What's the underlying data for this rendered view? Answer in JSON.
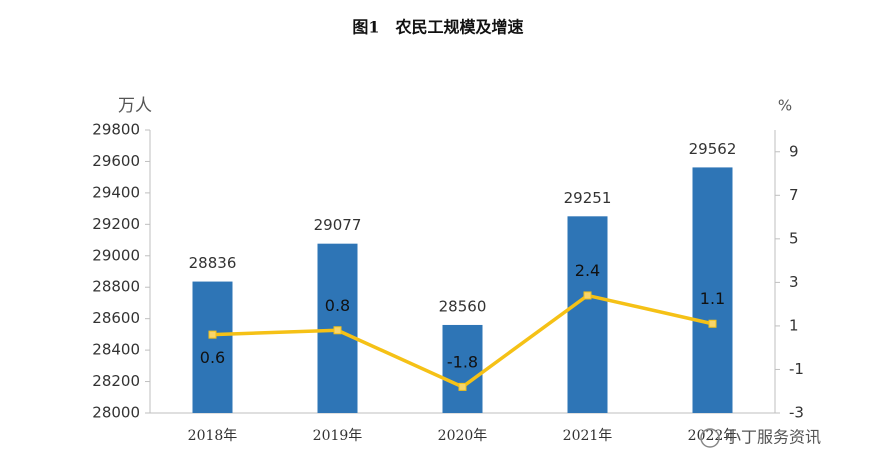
{
  "chart_data": {
    "type": "combo",
    "title": "图1　农民工规模及增速",
    "y_label": "万人",
    "y2_label": "%",
    "categories": [
      "2018年",
      "2019年",
      "2020年",
      "2021年",
      "2022年"
    ],
    "series": [
      {
        "type": "bar",
        "color": "#2e75b6",
        "values": [
          28836,
          29077,
          28560,
          29251,
          29562
        ]
      },
      {
        "type": "line",
        "axis": "y2",
        "color": "#f5c116",
        "values": [
          0.6,
          0.8,
          -1.8,
          2.4,
          1.1
        ]
      }
    ],
    "ylim": [
      28000,
      29800
    ],
    "yticks": [
      28000,
      28200,
      28400,
      28600,
      28800,
      29000,
      29200,
      29400,
      29600,
      29800
    ],
    "y2lim": [
      -3,
      10
    ],
    "y2ticks": [
      -3,
      -1,
      1,
      3,
      5,
      7,
      9
    ],
    "watermark": "小丁服务资讯"
  }
}
